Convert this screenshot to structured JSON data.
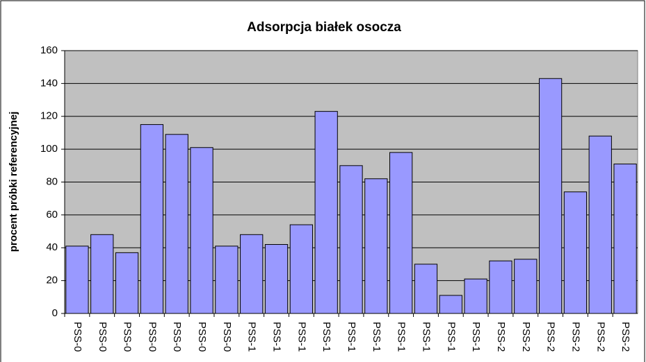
{
  "chart_data": {
    "type": "bar",
    "title": "Adsorpcja białek osocza",
    "y_label": "procent próbki referencyjnej",
    "categories": [
      "PSS-0",
      "PSS-0",
      "PSS-0",
      "PSS-0",
      "PSS-0",
      "PSS-0",
      "PSS-0",
      "PSS-1",
      "PSS-1",
      "PSS-1",
      "PSS-1",
      "PSS-1",
      "PSS-1",
      "PSS-1",
      "PSS-1",
      "PSS-1",
      "PSS-1",
      "PSS-2",
      "PSS-2",
      "PSS-2",
      "PSS-2",
      "PSS-2",
      "PSS-2"
    ],
    "values": [
      41,
      48,
      37,
      115,
      109,
      101,
      41,
      48,
      42,
      54,
      123,
      90,
      82,
      98,
      30,
      11,
      21,
      32,
      33,
      143,
      74,
      108,
      91
    ],
    "color": "#9999ff",
    "ylim": [
      0,
      160
    ],
    "yticks": [
      0,
      20,
      40,
      60,
      80,
      100,
      120,
      140,
      160
    ],
    "grid": true
  }
}
